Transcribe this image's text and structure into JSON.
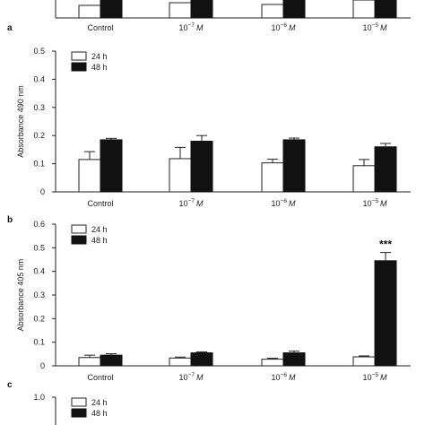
{
  "chart_data": [
    {
      "panel": "a",
      "type": "bar",
      "categories": [
        "Control",
        "10⁻⁷ M",
        "10⁻⁶ M",
        "10⁻⁵ M"
      ],
      "category_base": [
        "Control",
        "10",
        "10",
        "10"
      ],
      "category_exp": [
        "",
        "−7",
        "−6",
        "−5"
      ],
      "category_unit": [
        "",
        "M",
        "M",
        "M"
      ],
      "ylabel": "",
      "ylim": [
        0,
        0.5
      ],
      "yticks": [],
      "series": [],
      "legend": [],
      "annotations": []
    },
    {
      "panel": "b",
      "type": "bar",
      "categories": [
        "Control",
        "10⁻⁷ M",
        "10⁻⁶ M",
        "10⁻⁵ M"
      ],
      "category_base": [
        "Control",
        "10",
        "10",
        "10"
      ],
      "category_exp": [
        "",
        "−7",
        "−6",
        "−5"
      ],
      "category_unit": [
        "",
        "M",
        "M",
        "M"
      ],
      "ylabel": "Absorbance 490 nm",
      "ylim": [
        0,
        0.5
      ],
      "yticks": [
        "0",
        "0.1",
        "0.2",
        "0.3",
        "0.4",
        "0.5"
      ],
      "series": [
        {
          "name": "24 h",
          "values": [
            0.115,
            0.118,
            0.103,
            0.093
          ],
          "errors": [
            0.028,
            0.04,
            0.013,
            0.022
          ],
          "color": "#ffffff"
        },
        {
          "name": "48 h",
          "values": [
            0.185,
            0.18,
            0.185,
            0.16
          ],
          "errors": [
            0.005,
            0.02,
            0.006,
            0.012
          ],
          "color": "#111111"
        }
      ],
      "legend": [
        "24 h",
        "48 h"
      ],
      "legend_position": "top-left",
      "annotations": []
    },
    {
      "panel": "c",
      "type": "bar",
      "categories": [
        "Control",
        "10⁻⁷ M",
        "10⁻⁶ M",
        "10⁻⁵ M"
      ],
      "category_base": [
        "Control",
        "10",
        "10",
        "10"
      ],
      "category_exp": [
        "",
        "−7",
        "−6",
        "−5"
      ],
      "category_unit": [
        "",
        "M",
        "M",
        "M"
      ],
      "ylabel": "Absorbance 405 nm",
      "ylim": [
        0,
        0.6
      ],
      "yticks": [
        "0",
        "0.1",
        "0.2",
        "0.3",
        "0.4",
        "0.5",
        "0.6"
      ],
      "series": [
        {
          "name": "24 h",
          "values": [
            0.035,
            0.033,
            0.028,
            0.038
          ],
          "errors": [
            0.01,
            0.004,
            0.004,
            0.004
          ],
          "color": "#ffffff"
        },
        {
          "name": "48 h",
          "values": [
            0.045,
            0.055,
            0.055,
            0.445
          ],
          "errors": [
            0.006,
            0.004,
            0.007,
            0.035
          ],
          "color": "#111111"
        }
      ],
      "legend": [
        "24 h",
        "48 h"
      ],
      "legend_position": "top-left",
      "annotations": [
        {
          "category": 3,
          "series": 1,
          "text": "***"
        }
      ]
    },
    {
      "panel": "",
      "type": "bar",
      "categories": [],
      "ylabel": "",
      "ylim": [
        0,
        1.0
      ],
      "yticks": [
        "1.0"
      ],
      "series": [],
      "legend": [
        "24 h",
        "48 h"
      ],
      "legend_position": "top-left",
      "annotations": []
    }
  ]
}
